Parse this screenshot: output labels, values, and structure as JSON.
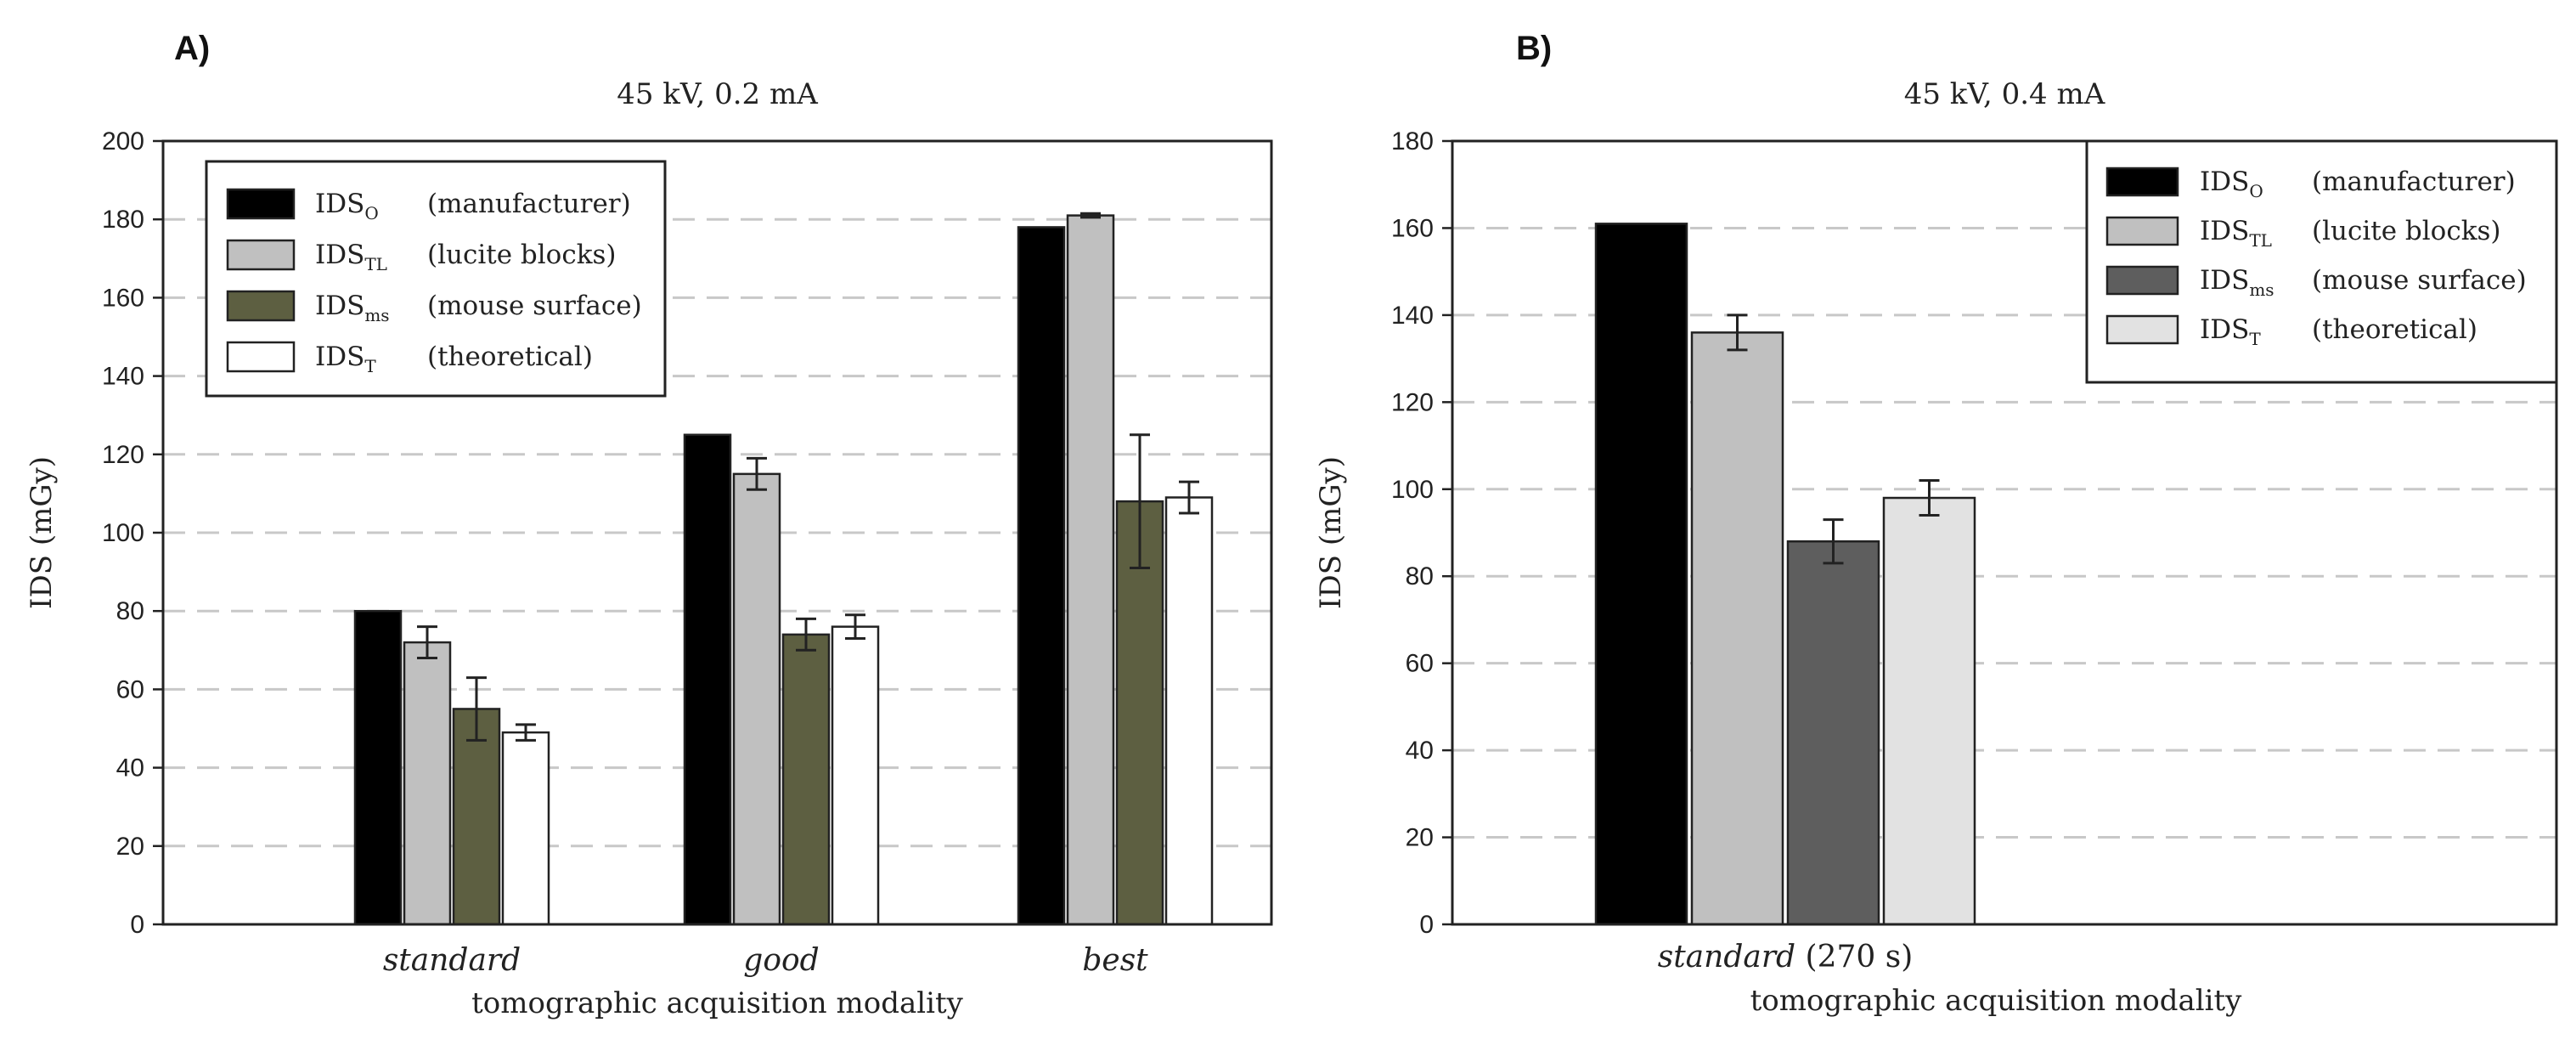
{
  "chart_data": [
    {
      "panel": "A)",
      "type": "bar",
      "title": "45 kV, 0.2 mA",
      "xlabel": "tomographic acquisition modality",
      "ylabel": "IDS (mGy)",
      "ylim": [
        0,
        200
      ],
      "yticks": [
        0,
        20,
        40,
        60,
        80,
        100,
        120,
        140,
        160,
        180,
        200
      ],
      "categories": [
        "standard",
        "good",
        "best"
      ],
      "category_suffixes": [
        "",
        "",
        ""
      ],
      "legend_position": "top-left",
      "grid": true,
      "series": [
        {
          "name": "IDS",
          "sub": "O",
          "desc": "(manufacturer)",
          "color": "#000000",
          "values": [
            80,
            125,
            178
          ],
          "errors": [
            null,
            null,
            null
          ]
        },
        {
          "name": "IDS",
          "sub": "TL",
          "desc": "(lucite blocks)",
          "color": "#c0c0c0",
          "values": [
            72,
            115,
            181
          ],
          "errors": [
            4,
            4,
            0.5
          ]
        },
        {
          "name": "IDS",
          "sub": "ms",
          "desc": "(mouse surface)",
          "color": "#5d5f41",
          "values": [
            55,
            74,
            108
          ],
          "errors": [
            8,
            4,
            17
          ]
        },
        {
          "name": "IDS",
          "sub": "T",
          "desc": "(theoretical)",
          "color": "#ffffff",
          "values": [
            49,
            76,
            109
          ],
          "errors": [
            2,
            3,
            4
          ]
        }
      ]
    },
    {
      "panel": "B)",
      "type": "bar",
      "title": "45 kV, 0.4 mA",
      "xlabel": "tomographic acquisition modality",
      "ylabel": "IDS (mGy)",
      "ylim": [
        0,
        180
      ],
      "yticks": [
        0,
        20,
        40,
        60,
        80,
        100,
        120,
        140,
        160,
        180
      ],
      "categories": [
        "standard"
      ],
      "category_suffixes": [
        " (270 s)"
      ],
      "legend_position": "top-right",
      "grid": true,
      "series": [
        {
          "name": "IDS",
          "sub": "O",
          "desc": "(manufacturer)",
          "color": "#000000",
          "values": [
            161
          ],
          "errors": [
            null
          ]
        },
        {
          "name": "IDS",
          "sub": "TL",
          "desc": "(lucite blocks)",
          "color": "#c0c0c0",
          "values": [
            136
          ],
          "errors": [
            4
          ]
        },
        {
          "name": "IDS",
          "sub": "ms",
          "desc": "(mouse surface)",
          "color": "#5e5e5e",
          "values": [
            88
          ],
          "errors": [
            5
          ]
        },
        {
          "name": "IDS",
          "sub": "T",
          "desc": "(theoretical)",
          "color": "#e2e2e2",
          "values": [
            98
          ],
          "errors": [
            4
          ]
        }
      ]
    }
  ]
}
